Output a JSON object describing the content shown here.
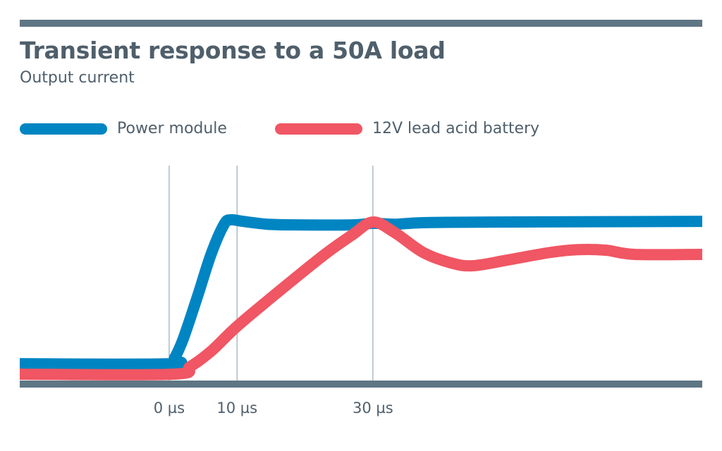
{
  "chart_data": {
    "type": "line",
    "title": "Transient response to a 50A load",
    "subtitle": "Output current",
    "xlabel": "",
    "ylabel": "",
    "xlim": [
      -22,
      78.5
    ],
    "ylim": [
      0,
      67.8
    ],
    "x_ticks": [
      {
        "value": 0,
        "label": "0 µs"
      },
      {
        "value": 10,
        "label": "10 µs"
      },
      {
        "value": 30,
        "label": "30 µs"
      }
    ],
    "grid": "vertical lines at tick values",
    "legend_position": "top",
    "series": [
      {
        "name": "Power module",
        "color": "#0085c3",
        "x": [
          -22,
          0,
          0.8,
          2.1,
          4.2,
          6.2,
          8.1,
          9.1,
          10.9,
          14.5,
          18.7,
          27,
          30,
          33.2,
          37.4,
          47.8,
          78.5
        ],
        "y": [
          5.3,
          5.3,
          7.1,
          13.3,
          26.7,
          40,
          49.3,
          50.7,
          50.2,
          49.3,
          49.1,
          49.1,
          49.6,
          49.3,
          49.8,
          50,
          50.2
        ]
      },
      {
        "name": "12V lead acid battery",
        "color": "#f05663",
        "x": [
          -22,
          0.5,
          3.1,
          6.2,
          10,
          16.6,
          22.8,
          27,
          30,
          33.2,
          37.4,
          41.5,
          44.7,
          49.8,
          56.1,
          60.2,
          64.4,
          68.5,
          78.5
        ],
        "y": [
          2,
          2,
          4.4,
          9.3,
          17.1,
          28.9,
          39.6,
          46,
          50,
          46.7,
          40.4,
          37.1,
          36.2,
          38,
          40.4,
          41.3,
          41.1,
          39.8,
          39.8
        ]
      }
    ],
    "colors": {
      "axis": "#5f7685",
      "grid": "#9aabb6",
      "text": "#4f5f6b"
    }
  }
}
